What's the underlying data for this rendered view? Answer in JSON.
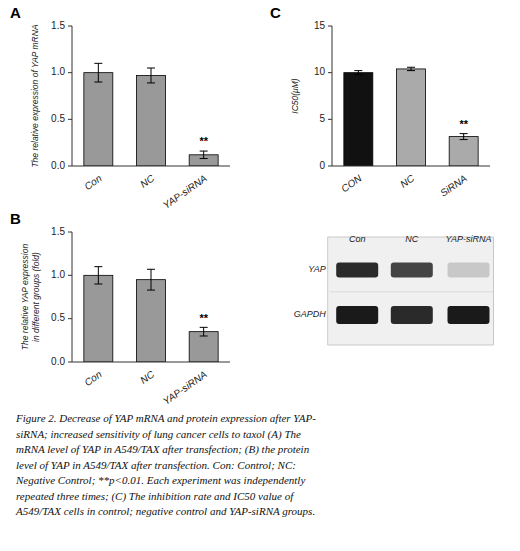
{
  "chart_data": [
    {
      "type": "bar",
      "title": "A",
      "categories": [
        "Con",
        "NC",
        "YAP-siRNA"
      ],
      "values": [
        1.0,
        0.97,
        0.12
      ],
      "errors": [
        0.1,
        0.08,
        0.04
      ],
      "color": "#999999",
      "y_label": "The relative expression of YAP mRNA",
      "ylim": [
        0,
        1.5
      ],
      "yticks": [
        {
          "value": 0,
          "label": "0.0"
        },
        0.5,
        {
          "value": 1,
          "label": "1.0"
        },
        1.5
      ],
      "annotations": [
        {
          "text": "**",
          "index": 2
        }
      ]
    },
    {
      "type": "bar",
      "title": "C",
      "categories": [
        "CON",
        "NC",
        "SiRNA"
      ],
      "values": [
        10.0,
        10.4,
        3.15
      ],
      "errors": [
        0.22,
        0.18,
        0.32
      ],
      "colors": [
        "#111111",
        "#aaaaaa",
        "#aaaaaa"
      ],
      "y_label": "IC50(μM)",
      "ylim": [
        0,
        15
      ],
      "yticks": [
        0,
        5,
        10,
        15
      ],
      "annotations": [
        {
          "text": "**",
          "index": 2
        }
      ]
    },
    {
      "type": "bar",
      "title": "B",
      "categories": [
        "Con",
        "NC",
        "YAP-siRNA"
      ],
      "values": [
        1.0,
        0.95,
        0.35
      ],
      "errors": [
        0.1,
        0.12,
        0.05
      ],
      "color": "#999999",
      "y_label": "The relative YAP expression\nin different groups (fold)",
      "ylim": [
        0,
        1.5
      ],
      "yticks": [
        {
          "value": 0,
          "label": "0.0"
        },
        0.5,
        {
          "value": 1,
          "label": "1.0"
        },
        1.5
      ],
      "annotations": [
        {
          "text": "**",
          "index": 2
        }
      ]
    },
    {
      "type": "blot",
      "categories": [
        "Con",
        "NC",
        "YAP-siRNA"
      ],
      "series": [
        {
          "name": "YAP",
          "colors": [
            "#2a2a2a",
            "#444444",
            "#c8c8c8"
          ]
        },
        {
          "name": "GAPDH",
          "colors": [
            "#1a1a1a",
            "#2a2a2a",
            "#1a1a1a"
          ]
        }
      ]
    }
  ],
  "caption": [
    "Figure 2. Decrease of YAP mRNA and protein expression after YAP-",
    "siRNA; increased sensitivity of lung cancer cells to taxol (A) The",
    "mRNA level of YAP in A549/TAX after transfection; (B) the protein",
    "level of YAP in A549/TAX after transfection. Con: Control; NC:",
    "Negative Control; **p<0.01. Each experiment was independently",
    "repeated three times; (C) The inhibition rate and IC50 value of",
    "A549/TAX cells in control; negative control and YAP-siRNA groups."
  ]
}
